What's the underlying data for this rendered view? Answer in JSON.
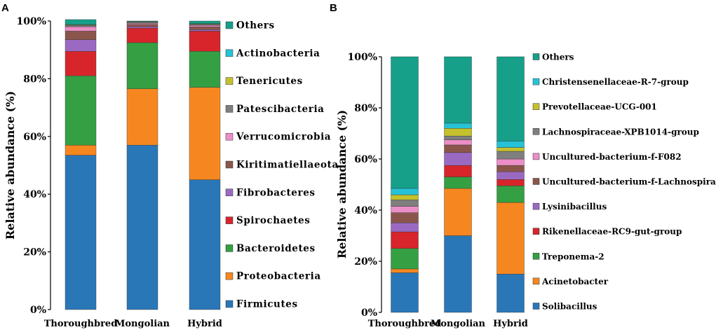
{
  "colors": [
    "#2a77b8",
    "#f68720",
    "#34a043",
    "#d7252b",
    "#9a6ac3",
    "#8a564b",
    "#ec8ec7",
    "#7f7f7f",
    "#c4c12d",
    "#25c2d8",
    "#16a08a"
  ],
  "chart_data": [
    {
      "type": "bar",
      "stacked": true,
      "panel": "A",
      "title": "",
      "xlabel": "",
      "ylabel": "Relative  abundance  (%)",
      "ylim": [
        0,
        100
      ],
      "yticks": [
        "0%",
        "20%",
        "40%",
        "60%",
        "80%",
        "100%"
      ],
      "categories": [
        "Thoroughbred",
        "Mongolian",
        "Hybrid"
      ],
      "legend_position": "right",
      "series": [
        {
          "name": "Firmicutes",
          "values": [
            53.5,
            57,
            45
          ]
        },
        {
          "name": "Proteobacteria",
          "values": [
            3.5,
            19.5,
            32
          ]
        },
        {
          "name": "Bacteroidetes",
          "values": [
            24,
            16,
            12.5
          ]
        },
        {
          "name": "Spirochaetes",
          "values": [
            8.5,
            5,
            7
          ]
        },
        {
          "name": "Fibrobacteres",
          "values": [
            4,
            0.5,
            0.5
          ]
        },
        {
          "name": "Kiritimatiellaeota",
          "values": [
            3,
            0.8,
            1
          ]
        },
        {
          "name": "Verrucomicrobia",
          "values": [
            1.5,
            0.4,
            0.5
          ]
        },
        {
          "name": "Patescibacteria",
          "values": [
            0.5,
            0.3,
            0.3
          ]
        },
        {
          "name": "Tenericutes",
          "values": [
            0.2,
            0.2,
            0.2
          ]
        },
        {
          "name": "Actinobacteria",
          "values": [
            0.1,
            0.1,
            0.1
          ]
        },
        {
          "name": "Others",
          "values": [
            1.7,
            0.2,
            0.9
          ]
        }
      ]
    },
    {
      "type": "bar",
      "stacked": true,
      "panel": "B",
      "title": "",
      "xlabel": "",
      "ylabel": "Relative abundance (%)",
      "ylim": [
        0,
        100
      ],
      "yticks": [
        "0%",
        "20%",
        "40%",
        "60%",
        "80%",
        "100%"
      ],
      "categories": [
        "Thoroughbred",
        "Mongolian",
        "Hybrid"
      ],
      "legend_position": "right",
      "series": [
        {
          "name": "Solibacillus",
          "values": [
            15.5,
            30,
            15
          ]
        },
        {
          "name": "Acinetobacter",
          "values": [
            1.5,
            18.5,
            28
          ]
        },
        {
          "name": "Treponema-2",
          "values": [
            8,
            4.5,
            6.5
          ]
        },
        {
          "name": "Rikenellaceae-RC9-gut-group",
          "values": [
            6.5,
            4.5,
            2.5
          ]
        },
        {
          "name": "Lysinibacillus",
          "values": [
            3.5,
            5,
            3
          ]
        },
        {
          "name": "Uncultured-bacterium-f-Lachnospiraceae",
          "values": [
            4,
            3,
            2.5
          ]
        },
        {
          "name": "Uncultured-bacterium-f-F082",
          "values": [
            2.5,
            2,
            2.5
          ]
        },
        {
          "name": "Lachnospiraceae-XPB1014-group",
          "values": [
            2.5,
            1.5,
            3
          ]
        },
        {
          "name": "Prevotellaceae-UCG-001",
          "values": [
            2,
            3,
            1.5
          ]
        },
        {
          "name": "Christensenellaceae-R-7-group",
          "values": [
            2.5,
            2,
            2.5
          ]
        },
        {
          "name": "Others",
          "values": [
            51.5,
            26,
            33
          ]
        }
      ]
    }
  ]
}
